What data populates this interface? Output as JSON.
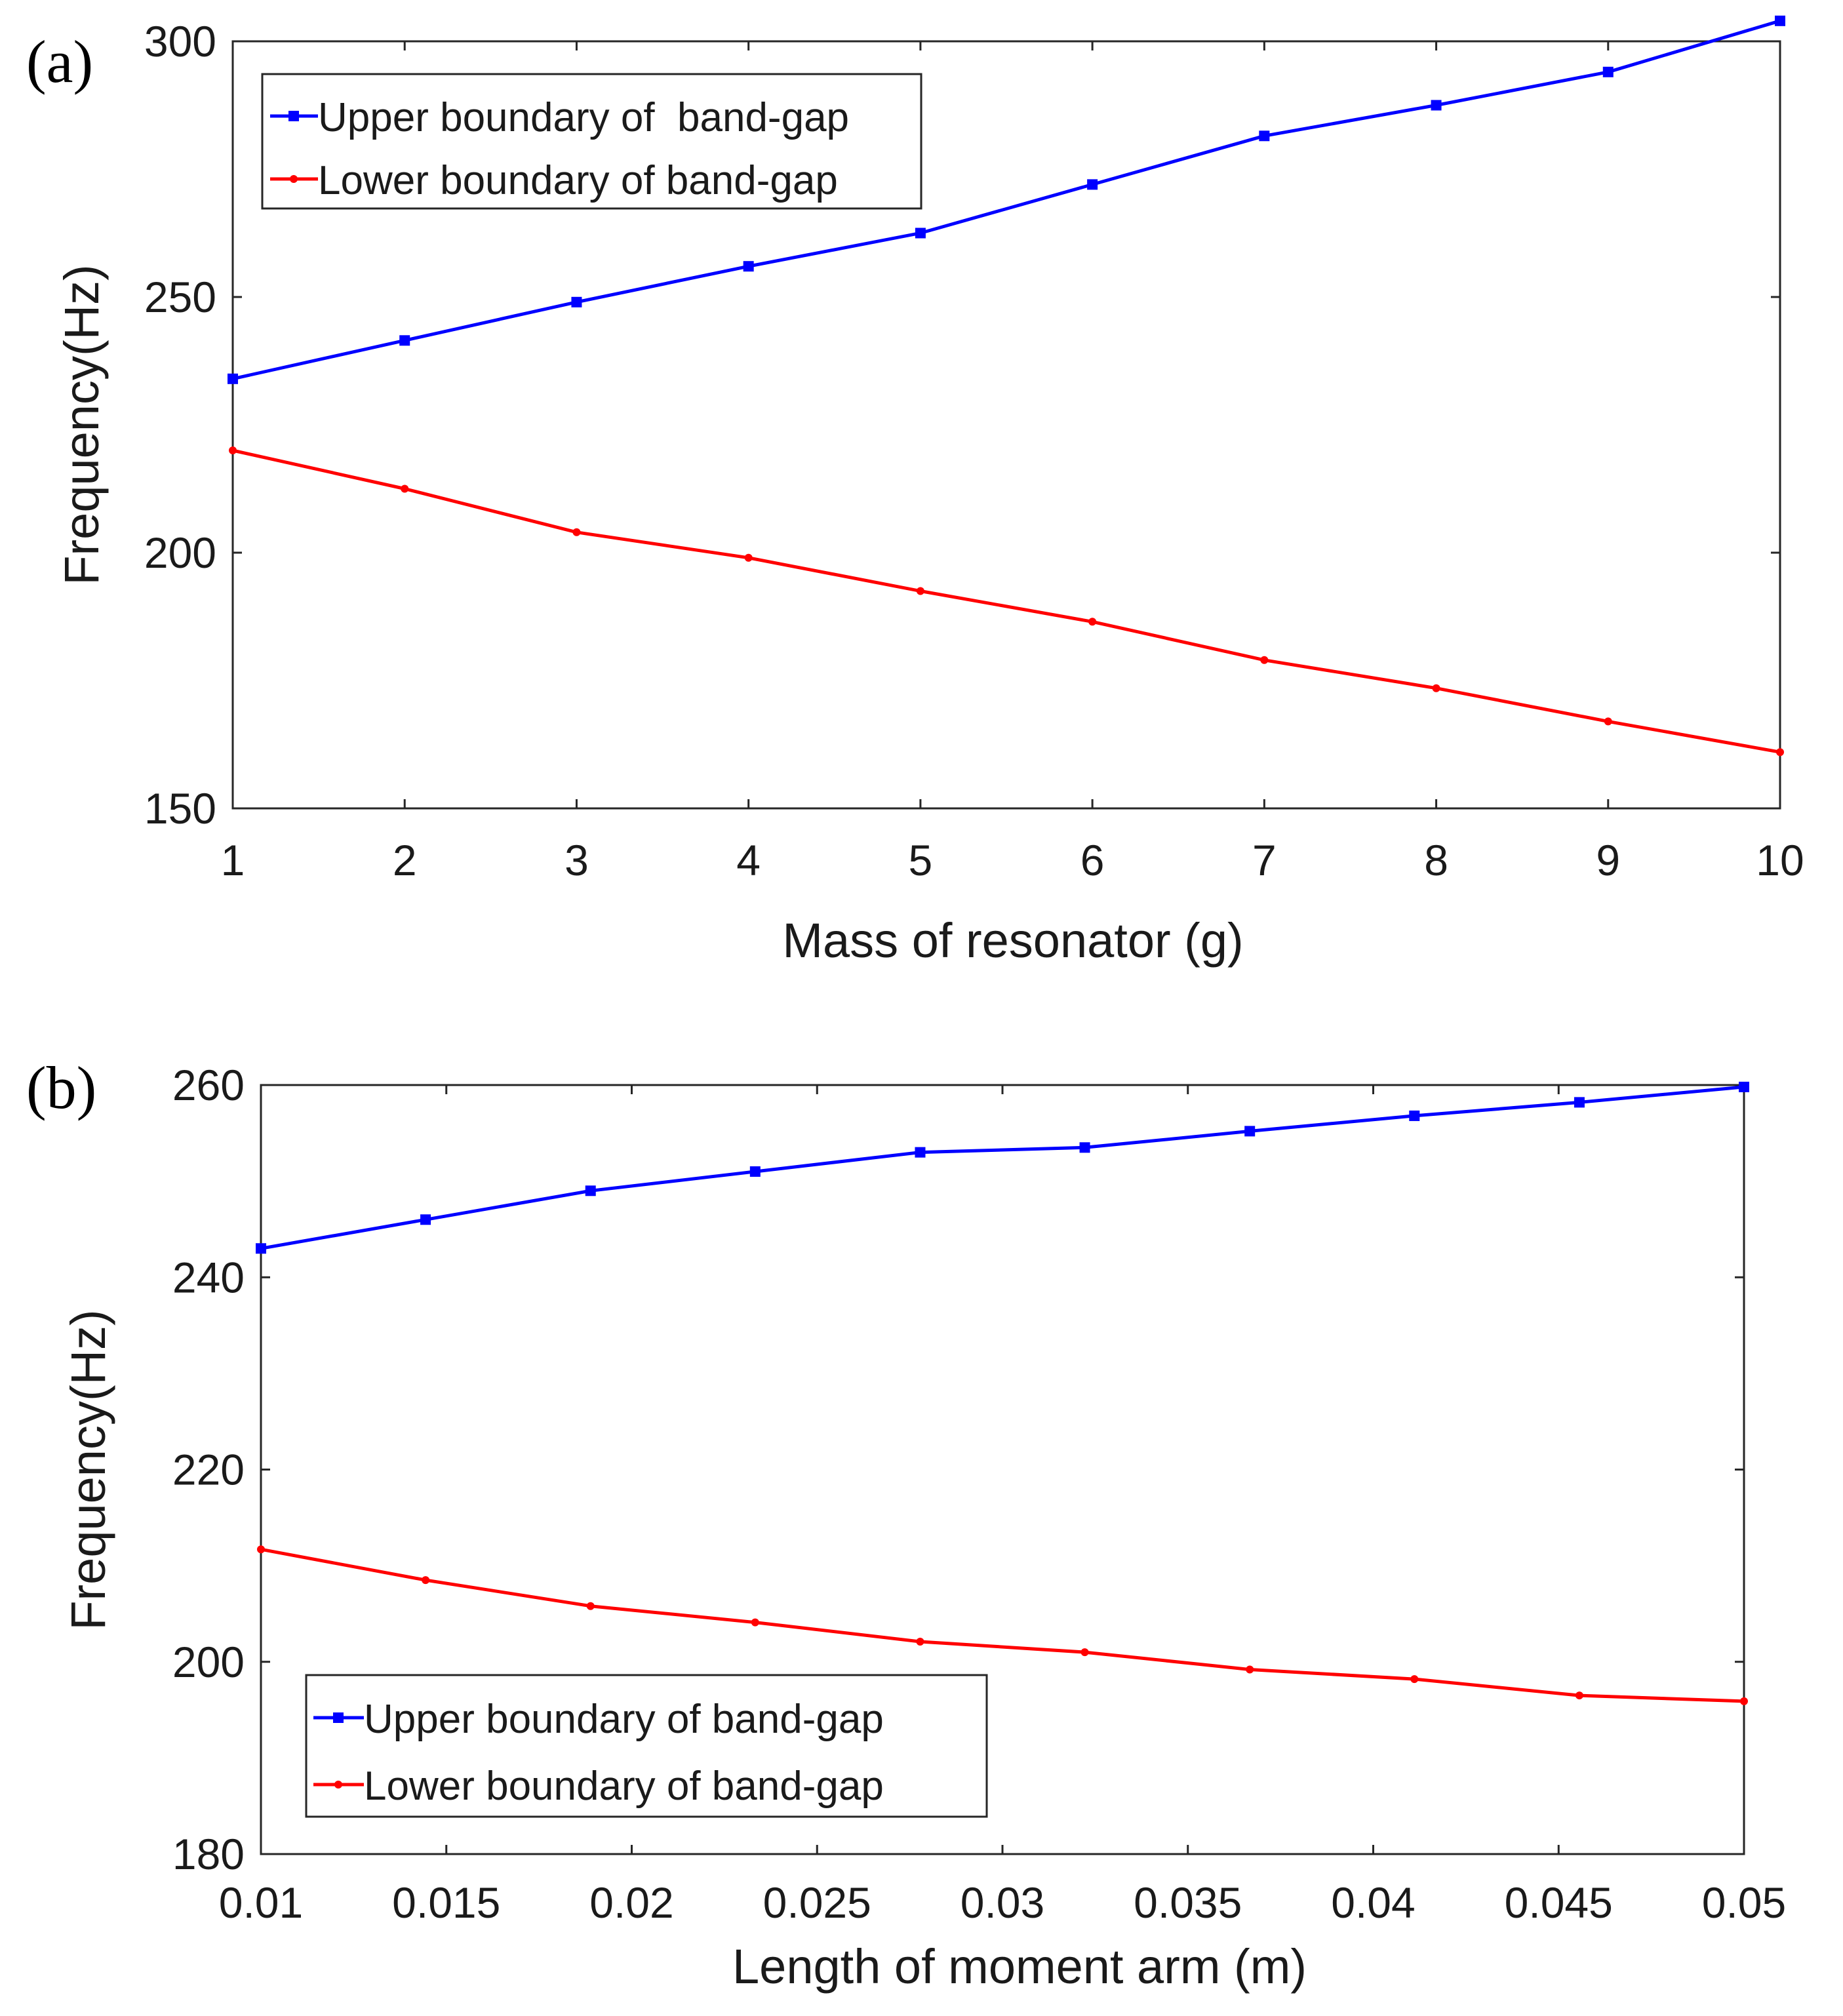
{
  "chart_data": [
    {
      "panel_label": "(a)",
      "type": "line",
      "xlabel": "Mass of resonator (g)",
      "ylabel": "Frequency(Hz)",
      "xlim": [
        1,
        10
      ],
      "ylim": [
        150,
        300
      ],
      "xticks": [
        1,
        2,
        3,
        4,
        5,
        6,
        7,
        8,
        9,
        10
      ],
      "xtick_labels": [
        "1",
        "2",
        "3",
        "4",
        "5",
        "6",
        "7",
        "8",
        "9",
        "10"
      ],
      "yticks": [
        150,
        200,
        250,
        300
      ],
      "ytick_labels": [
        "150",
        "200",
        "250",
        "300"
      ],
      "legend_position": "top-left",
      "series": [
        {
          "name": "Upper boundary of  band-gap",
          "color": "#0000ff",
          "marker": "square",
          "x": [
            1,
            2,
            3,
            4,
            5,
            6,
            7,
            8,
            9,
            10
          ],
          "values": [
            234,
            241.5,
            249,
            256,
            262.5,
            272,
            281.5,
            287.5,
            294,
            304
          ]
        },
        {
          "name": "Lower boundary of band-gap",
          "color": "#ff0000",
          "marker": "dot",
          "x": [
            1,
            2,
            3,
            4,
            5,
            6,
            7,
            8,
            9,
            10
          ],
          "values": [
            220,
            212.5,
            204,
            199,
            192.5,
            186.5,
            179,
            173.5,
            167,
            161
          ]
        }
      ]
    },
    {
      "panel_label": "(b)",
      "type": "line",
      "xlabel": "Length of moment arm (m)",
      "ylabel": "Frequency(Hz)",
      "xlim": [
        0.01,
        0.05
      ],
      "ylim": [
        180,
        260
      ],
      "xticks": [
        0.01,
        0.015,
        0.02,
        0.025,
        0.03,
        0.035,
        0.04,
        0.045,
        0.05
      ],
      "xtick_labels": [
        "0.01",
        "0.015",
        "0.02",
        "0.025",
        "0.03",
        "0.035",
        "0.04",
        "0.045",
        "0.05"
      ],
      "yticks": [
        180,
        200,
        220,
        240,
        260
      ],
      "ytick_labels": [
        "180",
        "200",
        "220",
        "240",
        "260"
      ],
      "legend_position": "bottom-left",
      "series": [
        {
          "name": "Upper boundary of band-gap",
          "color": "#0000ff",
          "marker": "square",
          "x": [
            0.01,
            0.01444,
            0.01889,
            0.02333,
            0.02778,
            0.03222,
            0.03667,
            0.04111,
            0.04556,
            0.05
          ],
          "values": [
            243,
            246,
            249,
            251,
            253,
            253.5,
            255.2,
            256.8,
            258.2,
            259.8
          ]
        },
        {
          "name": "Lower boundary of band-gap",
          "color": "#ff0000",
          "marker": "dot",
          "x": [
            0.01,
            0.01444,
            0.01889,
            0.02333,
            0.02778,
            0.03222,
            0.03667,
            0.04111,
            0.04556,
            0.05
          ],
          "values": [
            211.7,
            208.5,
            205.8,
            204.1,
            202.1,
            201,
            199.2,
            198.2,
            196.5,
            195.9
          ]
        }
      ]
    }
  ]
}
